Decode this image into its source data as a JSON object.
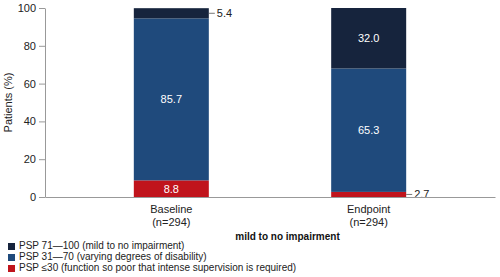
{
  "chart_data": {
    "type": "bar",
    "stacked": true,
    "data_labels": true,
    "legend": "bottom",
    "y_label": "Patients (%)",
    "annotations": [
      "mild to no impairment"
    ],
    "categories": [
      "Baseline\n(n=294)",
      "Endpoint\n(n=294)"
    ],
    "ylim": [
      0,
      100
    ],
    "yticks": [
      0,
      20,
      40,
      60,
      80,
      100
    ],
    "series": [
      {
        "name": "PSP ≤30 (function so poor that intense supervision is required)",
        "color": "#c0141c",
        "values": [
          8.8,
          2.7
        ],
        "value_labels": [
          "8.8",
          "2.7"
        ]
      },
      {
        "name": "PSP 31—70 (varying degrees of disability)",
        "color": "#1f4a7c",
        "values": [
          85.7,
          65.3
        ],
        "value_labels": [
          "85.7",
          "65.3"
        ]
      },
      {
        "name": "PSP 71—100 (mild to no impairment)",
        "color": "#16243d",
        "values": [
          5.4,
          32.0
        ],
        "value_labels": [
          "5.4",
          "32.0"
        ]
      }
    ]
  }
}
